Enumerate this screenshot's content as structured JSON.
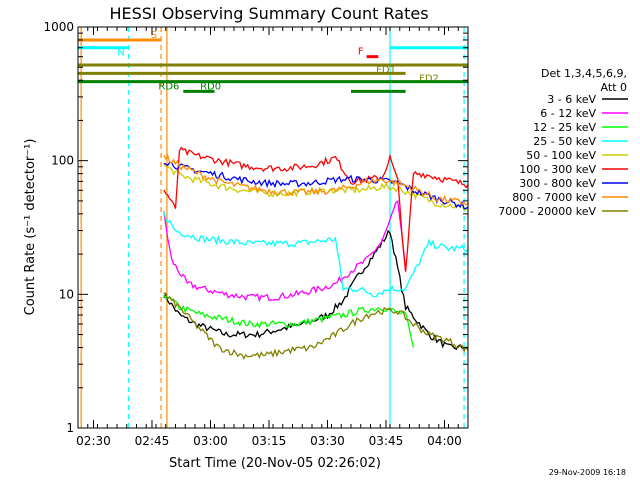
{
  "chart_data": {
    "type": "line",
    "title": "HESSI Observing Summary Count Rates",
    "xlabel": "Start Time (20-Nov-05 02:26:02)",
    "ylabel": "Count Rate (s⁻¹ detector⁻¹)",
    "yscale": "log",
    "ylim": [
      1,
      1000
    ],
    "xlim_minutes": [
      0,
      100
    ],
    "x_ticks": [
      {
        "label": "02:30",
        "t": 3.97
      },
      {
        "label": "02:45",
        "t": 18.97
      },
      {
        "label": "03:00",
        "t": 33.97
      },
      {
        "label": "03:15",
        "t": 48.97
      },
      {
        "label": "03:30",
        "t": 63.97
      },
      {
        "label": "03:45",
        "t": 78.97
      },
      {
        "label": "04:00",
        "t": 93.97
      }
    ],
    "y_ticks": [
      {
        "label": "1",
        "v": 1
      },
      {
        "label": "10",
        "v": 10
      },
      {
        "label": "100",
        "v": 100
      },
      {
        "label": "1000",
        "v": 1000
      }
    ],
    "legend": {
      "position": "right",
      "header": [
        "Det 1,3,4,5,6,9,",
        "Att 0"
      ]
    },
    "series": [
      {
        "name": "3 - 6 keV",
        "color": "#000000",
        "x": [
          22,
          26,
          30,
          38,
          46,
          52,
          58,
          64,
          68,
          72,
          76,
          80,
          84,
          90,
          95,
          100
        ],
        "y": [
          10,
          7,
          6,
          5,
          5,
          5.5,
          6,
          7,
          9,
          14,
          20,
          30,
          8,
          5,
          4,
          4
        ]
      },
      {
        "name": "6 - 12 keV",
        "color": "#ff00ff",
        "x": [
          22,
          24,
          28,
          32,
          38,
          44,
          50,
          56,
          62,
          66,
          70,
          74,
          78,
          82,
          84
        ],
        "y": [
          40,
          18,
          12,
          11,
          10,
          9.5,
          9.5,
          10,
          11,
          12,
          15,
          18,
          25,
          50,
          15
        ]
      },
      {
        "name": "12 - 25 keV",
        "color": "#00ff00",
        "x": [
          22,
          26,
          32,
          38,
          44,
          50,
          56,
          62,
          68,
          72,
          78,
          84,
          86
        ],
        "y": [
          10,
          8,
          7,
          6.5,
          6,
          6,
          6,
          6.5,
          7,
          7.5,
          8,
          7,
          4
        ]
      },
      {
        "name": "25 - 50 keV",
        "color": "#00ffff",
        "x": [
          22,
          25,
          28,
          32,
          38,
          44,
          50,
          56,
          62,
          66,
          68,
          72,
          76,
          80,
          84,
          90,
          95,
          100
        ],
        "y": [
          40,
          30,
          28,
          26,
          25,
          24,
          24,
          24,
          25,
          26,
          11,
          11,
          10,
          11,
          11,
          24,
          22,
          22
        ]
      },
      {
        "name": "50 - 100 keV",
        "color": "#cccc00",
        "x": [
          22,
          26,
          30,
          36,
          42,
          48,
          54,
          60,
          66,
          70,
          74,
          78,
          82,
          86,
          92,
          100
        ],
        "y": [
          92,
          78,
          72,
          65,
          60,
          57,
          57,
          59,
          60,
          60,
          61,
          64,
          62,
          56,
          48,
          44
        ]
      },
      {
        "name": "100 - 300 keV",
        "color": "#ff0000",
        "x": [
          22,
          24,
          25,
          26,
          30,
          36,
          42,
          48,
          54,
          60,
          64,
          66,
          70,
          74,
          78,
          80,
          82,
          84,
          86,
          88,
          92,
          96,
          100
        ],
        "y": [
          60,
          50,
          42,
          120,
          110,
          100,
          92,
          88,
          88,
          92,
          100,
          105,
          70,
          72,
          75,
          105,
          70,
          14,
          80,
          80,
          75,
          70,
          66
        ]
      },
      {
        "name": "300 - 800 keV",
        "color": "#0000ff",
        "x": [
          22,
          26,
          30,
          36,
          42,
          48,
          54,
          60,
          66,
          70,
          74,
          78,
          82,
          86,
          92,
          100
        ],
        "y": [
          100,
          90,
          85,
          78,
          72,
          68,
          67,
          68,
          72,
          73,
          72,
          71,
          68,
          60,
          52,
          45
        ]
      },
      {
        "name": "800 - 7000 keV",
        "color": "#ff8c00",
        "x": [
          22,
          26,
          30,
          36,
          42,
          48,
          54,
          60,
          66,
          70,
          74,
          78,
          82,
          86,
          92,
          100
        ],
        "y": [
          108,
          92,
          82,
          70,
          64,
          60,
          58,
          58,
          60,
          64,
          70,
          72,
          68,
          62,
          52,
          48
        ]
      },
      {
        "name": "7000 - 20000 keV",
        "color": "#808000",
        "x": [
          22,
          26,
          30,
          36,
          42,
          48,
          54,
          60,
          66,
          70,
          74,
          78,
          82,
          86,
          90,
          95,
          100
        ],
        "y": [
          10,
          8,
          6,
          4,
          3.5,
          3.5,
          3.8,
          4,
          5,
          6,
          7,
          7.5,
          7.5,
          6,
          5,
          4.5,
          3.8
        ]
      }
    ],
    "flag_bars": [
      {
        "label": "S",
        "color": "#ff8c00",
        "y": 800,
        "ranges": [
          [
            0,
            21.3
          ]
        ]
      },
      {
        "label": "N",
        "color": "#00ffff",
        "y": 700,
        "ranges": [
          [
            0,
            13
          ]
        ]
      },
      {
        "label": "N",
        "color": "#00ffff",
        "y": 700,
        "ranges": [
          [
            80,
            100
          ]
        ]
      },
      {
        "label": "F",
        "color": "#ff0000",
        "y": 600,
        "ranges": [
          [
            74,
            77
          ]
        ]
      },
      {
        "label": "FD1",
        "color": "#808000",
        "y": 520,
        "ranges": [
          [
            0,
            100
          ]
        ]
      },
      {
        "label": "FD2",
        "color": "#808000",
        "y": 450,
        "ranges": [
          [
            0,
            84
          ]
        ]
      },
      {
        "label": "RD0",
        "color": "#008000",
        "y": 390,
        "ranges": [
          [
            0,
            100
          ]
        ]
      },
      {
        "label": "RD6",
        "color": "#008000",
        "y": 330,
        "ranges": [
          [
            27,
            35
          ],
          [
            70,
            84
          ]
        ]
      }
    ],
    "vertical_lines": [
      {
        "t": 0.8,
        "color": "#ff8c00",
        "style": "solid"
      },
      {
        "t": 13,
        "color": "#00ffff",
        "style": "dashed"
      },
      {
        "t": 21.3,
        "color": "#ff8c00",
        "style": "dashed"
      },
      {
        "t": 22.8,
        "color": "#ff8c00",
        "style": "solid"
      },
      {
        "t": 80,
        "color": "#00ffff",
        "style": "solid"
      },
      {
        "t": 99,
        "color": "#00ffff",
        "style": "dashed"
      }
    ]
  },
  "footer": {
    "timestamp": "29-Nov-2009 16:18"
  }
}
